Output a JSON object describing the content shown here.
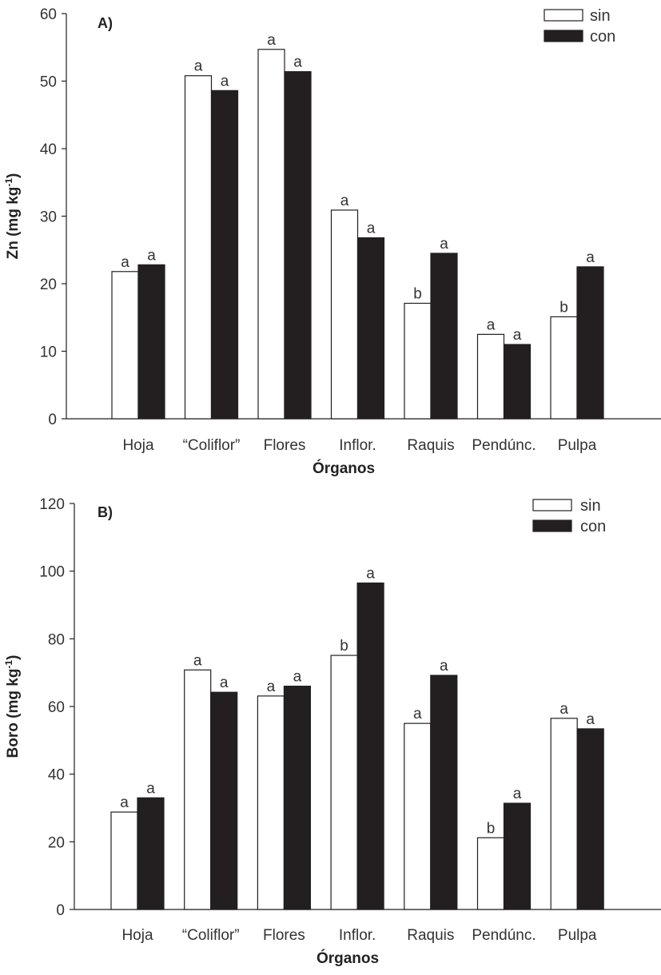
{
  "colors": {
    "sin": "#ffffff",
    "con": "#231f20",
    "axis": "#231f20",
    "text": "#333333"
  },
  "chart_data": [
    {
      "type": "bar",
      "panel": "A)",
      "xlabel": "Órganos",
      "ylabel_main": "Zn (mg kg",
      "ylabel_sup": "-1",
      "ylabel_end": ")",
      "ylim": [
        0,
        60
      ],
      "yticks": [
        0,
        10,
        20,
        30,
        40,
        50,
        60
      ],
      "legend": [
        "sin",
        "con"
      ],
      "legend_position": "top-right",
      "categories": [
        "Hoja",
        "“Coliflor”",
        "Flores",
        "Inflor.",
        "Raquis",
        "Pendúnc.",
        "Pulpa"
      ],
      "series": [
        {
          "name": "sin",
          "values": [
            21.8,
            50.8,
            54.7,
            30.9,
            17.1,
            12.5,
            15.1
          ],
          "sig": [
            "a",
            "a",
            "a",
            "a",
            "b",
            "a",
            "b"
          ]
        },
        {
          "name": "con",
          "values": [
            22.8,
            48.6,
            51.4,
            26.8,
            24.5,
            11.0,
            22.5
          ],
          "sig": [
            "a",
            "a",
            "a",
            "a",
            "a",
            "a",
            "a"
          ]
        }
      ]
    },
    {
      "type": "bar",
      "panel": "B)",
      "xlabel": "Órganos",
      "ylabel_main": "Boro (mg kg",
      "ylabel_sup": "-1",
      "ylabel_end": ")",
      "ylim": [
        0,
        120
      ],
      "yticks": [
        0,
        20,
        40,
        60,
        80,
        100,
        120
      ],
      "legend": [
        "sin",
        "con"
      ],
      "legend_position": "top-right",
      "categories": [
        "Hoja",
        "“Coliflor”",
        "Flores",
        "Inflor.",
        "Raquis",
        "Pendúnc.",
        "Pulpa"
      ],
      "series": [
        {
          "name": "sin",
          "values": [
            28.8,
            70.8,
            63.1,
            75.1,
            55.0,
            21.2,
            56.5
          ],
          "sig": [
            "a",
            "a",
            "a",
            "b",
            "a",
            "b",
            "a"
          ]
        },
        {
          "name": "con",
          "values": [
            33.0,
            64.2,
            66.0,
            96.5,
            69.2,
            31.4,
            53.4
          ],
          "sig": [
            "a",
            "a",
            "a",
            "a",
            "a",
            "a",
            "a"
          ]
        }
      ]
    }
  ]
}
